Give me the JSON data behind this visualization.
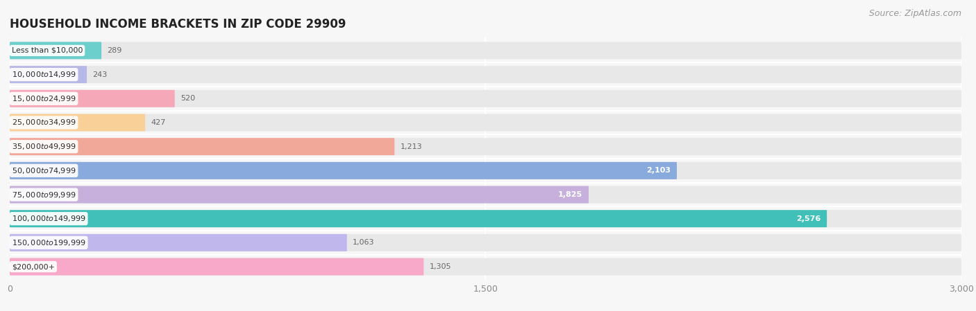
{
  "title": "HOUSEHOLD INCOME BRACKETS IN ZIP CODE 29909",
  "source": "Source: ZipAtlas.com",
  "categories": [
    "Less than $10,000",
    "$10,000 to $14,999",
    "$15,000 to $24,999",
    "$25,000 to $34,999",
    "$35,000 to $49,999",
    "$50,000 to $74,999",
    "$75,000 to $99,999",
    "$100,000 to $149,999",
    "$150,000 to $199,999",
    "$200,000+"
  ],
  "values": [
    289,
    243,
    520,
    427,
    1213,
    2103,
    1825,
    2576,
    1063,
    1305
  ],
  "bar_colors": [
    "#6dcfcc",
    "#b8b8e8",
    "#f5a8b8",
    "#f8d098",
    "#f2a898",
    "#88aadc",
    "#c8b0dc",
    "#40c0b8",
    "#c0b8ec",
    "#f8a8c8"
  ],
  "value_inside": [
    false,
    false,
    false,
    false,
    false,
    true,
    true,
    true,
    false,
    false
  ],
  "xlim": [
    0,
    3000
  ],
  "xticks": [
    0,
    1500,
    3000
  ],
  "bg_color": "#f7f7f7",
  "bar_bg_color": "#e8e8e8",
  "title_fontsize": 12,
  "source_fontsize": 9,
  "bar_label_fontsize": 8,
  "value_fontsize": 8
}
